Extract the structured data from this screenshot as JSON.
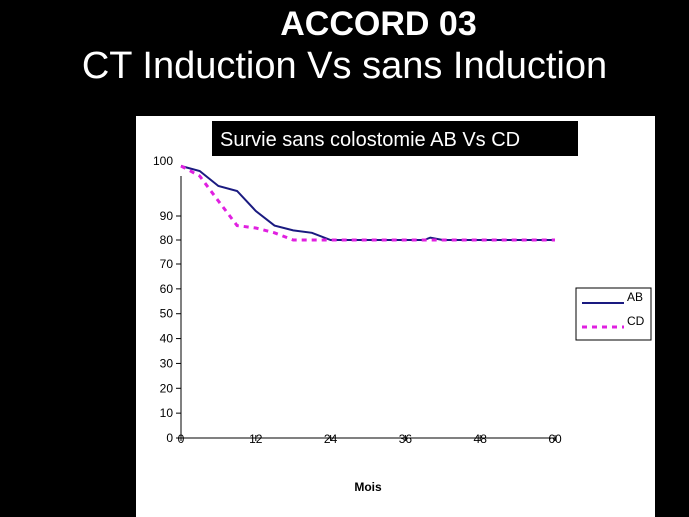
{
  "slide": {
    "title_line1": "ACCORD 03",
    "title_line2": "CT Induction Vs sans Induction"
  },
  "colors": {
    "background": "#000000",
    "panel": "#ffffff",
    "title_box": "#000000",
    "series_AB": "#1a1a80",
    "series_CD": "#e020e0"
  },
  "chart_data": {
    "type": "line",
    "title": "Survie sans colostomie AB Vs CD",
    "xlabel": "Mois",
    "ylabel": "",
    "xlim": [
      0,
      60
    ],
    "ylim": [
      0,
      100
    ],
    "xticks": [
      0,
      12,
      24,
      36,
      48,
      60
    ],
    "yticks": [
      0,
      10,
      20,
      30,
      40,
      50,
      60,
      70,
      80,
      90,
      100
    ],
    "legend_position": "right",
    "series": [
      {
        "name": "AB",
        "style": "solid",
        "x": [
          0,
          3,
          6,
          9,
          12,
          15,
          18,
          21,
          24,
          39,
          40,
          42,
          60
        ],
        "y": [
          100,
          99,
          96,
          95,
          91,
          86,
          84,
          83,
          80,
          80,
          81,
          80,
          80
        ]
      },
      {
        "name": "CD",
        "style": "dotted",
        "x": [
          0,
          3,
          6,
          9,
          12,
          15,
          18,
          21,
          24,
          30,
          36,
          40,
          42,
          60
        ],
        "y": [
          100,
          98,
          93,
          86,
          85,
          83,
          80,
          80,
          80,
          80,
          80,
          80,
          80,
          80
        ]
      }
    ]
  }
}
